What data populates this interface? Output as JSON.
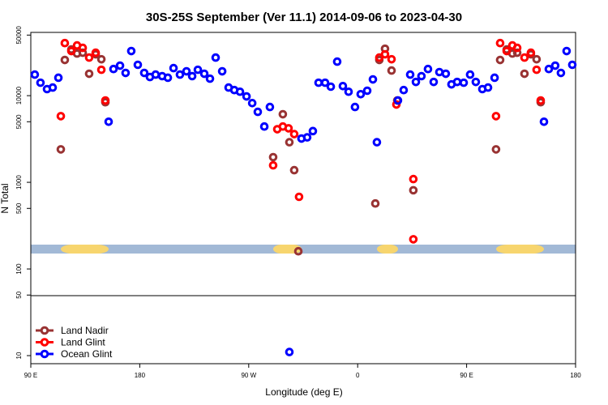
{
  "chart_data": {
    "type": "scatter",
    "title": "30S-25S September (Ver 11.1)   2014-09-06 to 2023-04-30",
    "xlabel": "Longitude (deg E)",
    "ylabel": "N Total",
    "xlim": [
      90,
      540
    ],
    "ylim": [
      8.07,
      53700
    ],
    "ylog": true,
    "xticks": [
      {
        "value": 90,
        "label": "90 E"
      },
      180,
      {
        "value": 270,
        "label": "90 W"
      },
      {
        "value": 360,
        "label": "0"
      },
      {
        "value": 450,
        "label": "90 E"
      },
      {
        "value": 540,
        "label": "180"
      }
    ],
    "yticks": [
      10,
      50,
      100,
      500,
      1000,
      5000,
      10000,
      50000
    ],
    "legend": "bottom-left",
    "series": [
      {
        "name": "Land Nadir",
        "color": "#993333",
        "x": [
          114.8,
          118.1,
          123.5,
          128.2,
          132.9,
          138.2,
          143.6,
          148.3,
          151.6,
          298.2,
          290.2,
          303.6,
          307.6,
          311.0,
          374.6,
          377.9,
          382.6,
          388.0,
          392.7,
          406.0,
          474.3,
          477.7,
          483.1,
          487.8,
          491.8,
          497.8,
          503.1,
          507.8,
          511.2
        ],
        "values": [
          2400,
          25800,
          34100,
          30600,
          31300,
          17900,
          30000,
          26300,
          8400,
          6100,
          1950,
          2900,
          1380,
          160,
          570,
          25800,
          34800,
          19500,
          8800,
          810,
          2400,
          25800,
          34100,
          30600,
          31300,
          17900,
          30000,
          26300,
          8400
        ]
      },
      {
        "name": "Land Glint",
        "color": "#ff0000",
        "x": [
          114.8,
          118.1,
          123.5,
          128.2,
          132.9,
          138.2,
          143.6,
          148.3,
          151.6,
          290.2,
          293.6,
          298.2,
          302.9,
          307.6,
          311.6,
          377.9,
          382.6,
          388.0,
          392.0,
          406.0,
          406.0,
          474.3,
          477.7,
          483.1,
          487.8,
          491.8,
          497.8,
          503.1,
          507.8,
          511.2
        ],
        "values": [
          5800,
          40400,
          32700,
          38000,
          35600,
          27500,
          31300,
          19900,
          8800,
          1570,
          4100,
          4400,
          4200,
          3600,
          680,
          27500,
          30000,
          26300,
          7900,
          1090,
          220,
          5800,
          40400,
          32700,
          38000,
          35600,
          27500,
          31300,
          19900,
          8800
        ]
      },
      {
        "name": "Ocean Glint",
        "color": "#0000ff",
        "x": [
          93.3,
          98.0,
          103.4,
          108.1,
          112.8,
          154.3,
          158.3,
          163.7,
          168.3,
          173.0,
          178.4,
          183.7,
          188.4,
          193.1,
          198.5,
          203.2,
          207.9,
          213.2,
          218.6,
          223.3,
          228.0,
          233.3,
          238.0,
          242.7,
          248.1,
          253.4,
          258.1,
          262.8,
          268.2,
          272.9,
          277.5,
          282.9,
          287.5,
          303.6,
          313.6,
          318.3,
          323.0,
          327.7,
          333.1,
          337.8,
          343.1,
          347.8,
          352.5,
          357.8,
          362.5,
          367.9,
          372.6,
          375.9,
          393.3,
          398.0,
          403.4,
          408.1,
          412.7,
          418.1,
          422.8,
          427.5,
          432.8,
          437.5,
          442.2,
          447.6,
          452.9,
          457.6,
          463.0,
          467.7,
          473.1,
          513.9,
          517.9,
          523.2,
          527.9,
          532.6,
          537.3
        ],
        "values": [
          17500,
          14100,
          11900,
          12400,
          16100,
          5000,
          20300,
          22200,
          18300,
          32700,
          22700,
          18300,
          16400,
          17500,
          16800,
          16100,
          20800,
          17500,
          19100,
          16800,
          19900,
          17900,
          15700,
          27500,
          19100,
          12400,
          11600,
          11100,
          9800,
          8200,
          6500,
          4400,
          7400,
          11,
          3200,
          3300,
          3900,
          14100,
          14100,
          12700,
          24700,
          12900,
          11100,
          7400,
          10400,
          11400,
          15400,
          2900,
          8800,
          11600,
          17500,
          14400,
          16800,
          20300,
          14400,
          18700,
          17900,
          13500,
          14400,
          14100,
          17500,
          14400,
          11900,
          12400,
          16100,
          5000,
          20300,
          22200,
          18300,
          32700,
          22700
        ]
      }
    ]
  }
}
